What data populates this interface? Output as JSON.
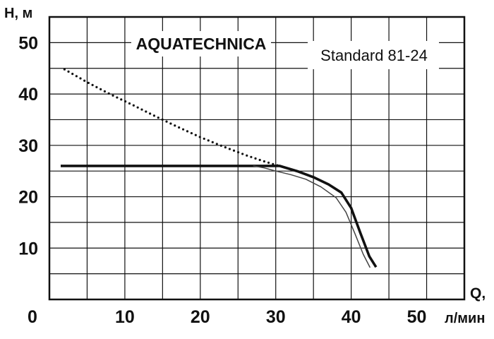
{
  "chart_data": {
    "type": "line",
    "brand": "AQUATECHNICA",
    "model": "Standard 81-24",
    "ylabel": "H, м",
    "xlabel_top": "Q,",
    "xlabel_bottom": "л/мин",
    "xlim": [
      0,
      55
    ],
    "ylim": [
      0,
      55
    ],
    "x_ticks": [
      0,
      10,
      20,
      30,
      40,
      50
    ],
    "y_ticks": [
      10,
      20,
      30,
      40,
      50
    ],
    "grid": true,
    "series": [
      {
        "style": "dotted",
        "color": "#111111",
        "points": [
          [
            2,
            44.8
          ],
          [
            5,
            42.3
          ],
          [
            8,
            40
          ],
          [
            11,
            37.9
          ],
          [
            14,
            35.7
          ],
          [
            17,
            33.6
          ],
          [
            20,
            31.6
          ],
          [
            23,
            29.8
          ],
          [
            26,
            28.1
          ],
          [
            28,
            27.1
          ],
          [
            30,
            26.2
          ],
          [
            31,
            25.8
          ]
        ]
      },
      {
        "style": "solid-thick",
        "color": "#111111",
        "points": [
          [
            1.5,
            26
          ],
          [
            10,
            26
          ],
          [
            20,
            26
          ],
          [
            27,
            26
          ],
          [
            29,
            26
          ],
          [
            30.5,
            26
          ],
          [
            33,
            24.9
          ],
          [
            35,
            23.8
          ],
          [
            37,
            22.4
          ],
          [
            38.7,
            20.8
          ],
          [
            40,
            17.8
          ],
          [
            41.2,
            13
          ],
          [
            42.4,
            8.4
          ],
          [
            43.3,
            6.3
          ]
        ]
      },
      {
        "style": "solid-thin",
        "color": "#444444",
        "points": [
          [
            27,
            26
          ],
          [
            28.5,
            25.6
          ],
          [
            30,
            25
          ],
          [
            32,
            24.3
          ],
          [
            34,
            23.4
          ],
          [
            36,
            21.9
          ],
          [
            38,
            19.8
          ],
          [
            39.3,
            17
          ],
          [
            40.5,
            12.8
          ],
          [
            41.6,
            8.8
          ],
          [
            42.5,
            6.2
          ]
        ]
      }
    ]
  }
}
